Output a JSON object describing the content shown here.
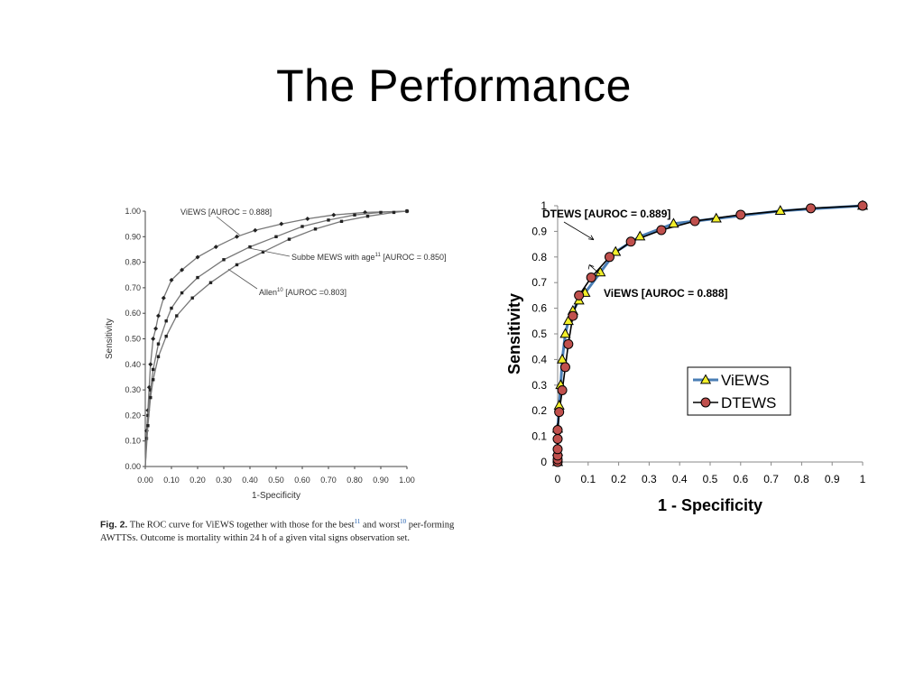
{
  "slide": {
    "title": "The Performance"
  },
  "caption": {
    "fig_label": "Fig. 2.",
    "part1": "The ROC curve for ViEWS together with those for the best",
    "ref_best": "11",
    "part2": " and worst",
    "ref_worst": "10",
    "part3": " per-forming AWTTSs. Outcome is mortality within 24 h of a given vital signs observation set."
  },
  "chart_data": [
    {
      "type": "line",
      "title": "",
      "xlabel": "1-Specificity",
      "ylabel": "Sensitivity",
      "xlim": [
        0,
        1
      ],
      "ylim": [
        0,
        1
      ],
      "grid": false,
      "x_ticks": [
        "0.00",
        "0.10",
        "0.20",
        "0.30",
        "0.40",
        "0.50",
        "0.60",
        "0.70",
        "0.80",
        "0.90",
        "1.00"
      ],
      "y_ticks": [
        "0.00",
        "0.10",
        "0.20",
        "0.30",
        "0.40",
        "0.50",
        "0.60",
        "0.70",
        "0.80",
        "0.90",
        "1.00"
      ],
      "colors": {
        "curve": "#777777",
        "marker": "#222222"
      },
      "series": [
        {
          "name": "ViEWS",
          "x": [
            0,
            0.005,
            0.01,
            0.015,
            0.02,
            0.03,
            0.04,
            0.05,
            0.07,
            0.1,
            0.14,
            0.2,
            0.27,
            0.35,
            0.42,
            0.52,
            0.62,
            0.72,
            0.84,
            1.0
          ],
          "y": [
            0,
            0.14,
            0.22,
            0.31,
            0.4,
            0.5,
            0.54,
            0.59,
            0.66,
            0.73,
            0.77,
            0.82,
            0.86,
            0.9,
            0.925,
            0.95,
            0.97,
            0.985,
            0.995,
            1.0
          ]
        },
        {
          "name": "Subbe MEWS with age",
          "x": [
            0,
            0.005,
            0.01,
            0.02,
            0.03,
            0.05,
            0.08,
            0.1,
            0.14,
            0.2,
            0.3,
            0.4,
            0.5,
            0.6,
            0.7,
            0.8,
            0.9,
            1.0
          ],
          "y": [
            0,
            0.11,
            0.2,
            0.3,
            0.38,
            0.48,
            0.57,
            0.62,
            0.68,
            0.74,
            0.81,
            0.86,
            0.9,
            0.94,
            0.965,
            0.985,
            0.995,
            1.0
          ]
        },
        {
          "name": "Allen",
          "x": [
            0,
            0.01,
            0.02,
            0.03,
            0.05,
            0.08,
            0.12,
            0.18,
            0.25,
            0.35,
            0.45,
            0.55,
            0.65,
            0.75,
            0.85,
            0.95,
            1.0
          ],
          "y": [
            0,
            0.16,
            0.27,
            0.34,
            0.43,
            0.51,
            0.59,
            0.66,
            0.72,
            0.79,
            0.84,
            0.89,
            0.93,
            0.96,
            0.98,
            0.995,
            1.0
          ]
        }
      ],
      "annotations": [
        {
          "text": "ViEWS [AUROC = 0.888]",
          "arrow_to": [
            0.36,
            0.9
          ]
        },
        {
          "text": "Subbe MEWS with age",
          "sup": "11",
          "suffix": " [AUROC = 0.850]",
          "arrow_to": [
            0.38,
            0.86
          ]
        },
        {
          "text": "Allen",
          "sup": "10",
          "suffix": " [AUROC =0.803]",
          "arrow_to": [
            0.31,
            0.78
          ]
        }
      ]
    },
    {
      "type": "line",
      "title": "",
      "xlabel": "1 - Specificity",
      "ylabel": "Sensitivity",
      "xlim": [
        0,
        1
      ],
      "ylim": [
        0,
        1
      ],
      "grid": false,
      "legend_position": "center-right",
      "x_ticks": [
        "0",
        "0.1",
        "0.2",
        "0.3",
        "0.4",
        "0.5",
        "0.6",
        "0.7",
        "0.8",
        "0.9",
        "1"
      ],
      "y_ticks": [
        "0",
        "0.1",
        "0.2",
        "0.3",
        "0.4",
        "0.5",
        "0.6",
        "0.7",
        "0.8",
        "0.9",
        "1"
      ],
      "colors": {
        "views_line": "#4a7eb5",
        "views_marker": "#f2ef2a",
        "dtews_line": "#000000",
        "dtews_marker": "#c0504d"
      },
      "series": [
        {
          "name": "ViEWS",
          "x": [
            0,
            0,
            0,
            0.005,
            0.01,
            0.015,
            0.025,
            0.035,
            0.05,
            0.07,
            0.09,
            0.14,
            0.19,
            0.27,
            0.38,
            0.52,
            0.73,
            1.0
          ],
          "y": [
            0,
            0.04,
            0.13,
            0.22,
            0.3,
            0.4,
            0.5,
            0.55,
            0.59,
            0.63,
            0.66,
            0.74,
            0.82,
            0.88,
            0.93,
            0.95,
            0.98,
            1.0
          ]
        },
        {
          "name": "DTEWS",
          "x": [
            0,
            0,
            0,
            0,
            0,
            0,
            0.005,
            0.015,
            0.025,
            0.035,
            0.05,
            0.07,
            0.11,
            0.17,
            0.24,
            0.34,
            0.45,
            0.6,
            0.83,
            1.0
          ],
          "y": [
            0,
            0.01,
            0.025,
            0.05,
            0.09,
            0.125,
            0.195,
            0.28,
            0.37,
            0.46,
            0.57,
            0.65,
            0.72,
            0.8,
            0.86,
            0.905,
            0.94,
            0.965,
            0.99,
            1.0
          ]
        }
      ],
      "annotations": [
        {
          "text": "DTEWS [AUROC = 0.889]",
          "arrow_to": [
            0.13,
            0.86
          ]
        },
        {
          "text": "ViEWS [AUROC = 0.888]",
          "arrow_to": [
            0.11,
            0.78
          ]
        }
      ]
    }
  ]
}
